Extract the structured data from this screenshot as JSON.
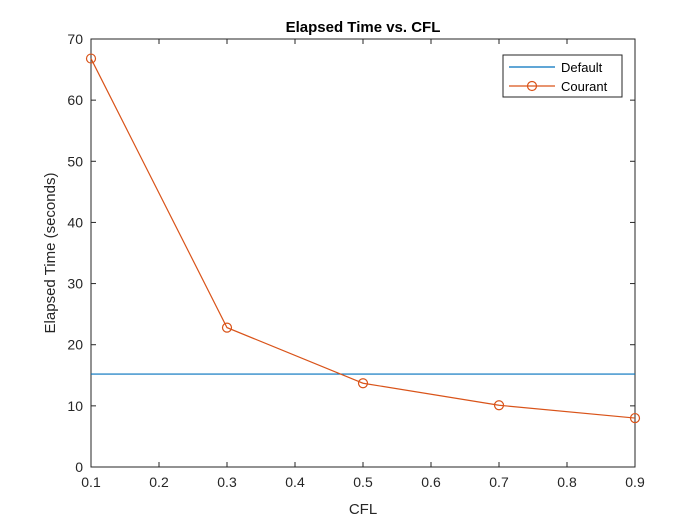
{
  "chart_data": {
    "type": "line",
    "title": "Elapsed Time vs. CFL",
    "xlabel": "CFL",
    "ylabel": "Elapsed Time (seconds)",
    "xlim": [
      0.1,
      0.9
    ],
    "ylim": [
      0,
      70
    ],
    "xticks": [
      "0.1",
      "0.2",
      "0.3",
      "0.4",
      "0.5",
      "0.6",
      "0.7",
      "0.8",
      "0.9"
    ],
    "yticks": [
      "0",
      "10",
      "20",
      "30",
      "40",
      "50",
      "60",
      "70"
    ],
    "grid": false,
    "legend_position": "top-right",
    "series": [
      {
        "name": "Default",
        "color": "#0072BD",
        "marker": "none",
        "x": [
          0.1,
          0.9
        ],
        "y": [
          15.2,
          15.2
        ]
      },
      {
        "name": "Courant",
        "color": "#D95319",
        "marker": "circle",
        "x": [
          0.1,
          0.3,
          0.5,
          0.7,
          0.9
        ],
        "y": [
          66.8,
          22.8,
          13.7,
          10.1,
          8.0
        ]
      }
    ]
  }
}
